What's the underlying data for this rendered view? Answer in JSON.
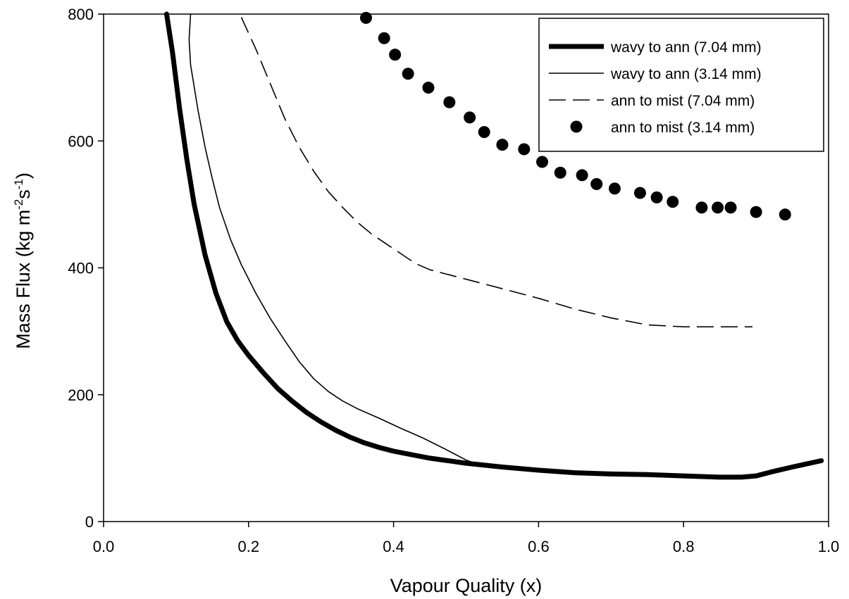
{
  "chart_data": {
    "type": "line",
    "xlabel": "Vapour Quality (x)",
    "ylabel": "Mass Flux (kg m-2s-1)",
    "ylabel_parts": [
      "Mass Flux (kg m",
      "-2",
      "s",
      "-1",
      ")"
    ],
    "xlim": [
      0.0,
      1.0
    ],
    "ylim": [
      0,
      800
    ],
    "x_ticks": [
      "0.0",
      "0.2",
      "0.4",
      "0.6",
      "0.8",
      "1.0"
    ],
    "y_ticks": [
      "0",
      "200",
      "400",
      "600",
      "800"
    ],
    "grid": false,
    "legend_position": "top-right",
    "series": [
      {
        "name": "wavy to ann (7.04 mm)",
        "style": "thick-solid",
        "color": "#000000",
        "points": [
          [
            0.087,
            800
          ],
          [
            0.095,
            740
          ],
          [
            0.105,
            650
          ],
          [
            0.115,
            570
          ],
          [
            0.125,
            500
          ],
          [
            0.14,
            420
          ],
          [
            0.155,
            360
          ],
          [
            0.17,
            315
          ],
          [
            0.185,
            285
          ],
          [
            0.2,
            262
          ],
          [
            0.22,
            235
          ],
          [
            0.24,
            210
          ],
          [
            0.26,
            190
          ],
          [
            0.28,
            172
          ],
          [
            0.3,
            157
          ],
          [
            0.32,
            144
          ],
          [
            0.34,
            133
          ],
          [
            0.36,
            124
          ],
          [
            0.38,
            117
          ],
          [
            0.4,
            111
          ],
          [
            0.45,
            100
          ],
          [
            0.5,
            92
          ],
          [
            0.55,
            86
          ],
          [
            0.6,
            81
          ],
          [
            0.65,
            77
          ],
          [
            0.7,
            75
          ],
          [
            0.75,
            74
          ],
          [
            0.8,
            72
          ],
          [
            0.85,
            70
          ],
          [
            0.88,
            70
          ],
          [
            0.9,
            72
          ],
          [
            0.92,
            78
          ],
          [
            0.95,
            86
          ],
          [
            0.99,
            96
          ]
        ]
      },
      {
        "name": "wavy to ann (3.14 mm)",
        "style": "thin-solid",
        "color": "#000000",
        "points": [
          [
            0.12,
            800
          ],
          [
            0.118,
            760
          ],
          [
            0.12,
            720
          ],
          [
            0.13,
            650
          ],
          [
            0.14,
            590
          ],
          [
            0.15,
            540
          ],
          [
            0.16,
            495
          ],
          [
            0.175,
            445
          ],
          [
            0.19,
            405
          ],
          [
            0.21,
            360
          ],
          [
            0.23,
            320
          ],
          [
            0.25,
            285
          ],
          [
            0.27,
            252
          ],
          [
            0.29,
            225
          ],
          [
            0.31,
            205
          ],
          [
            0.33,
            190
          ],
          [
            0.35,
            178
          ],
          [
            0.38,
            163
          ],
          [
            0.41,
            147
          ],
          [
            0.44,
            132
          ],
          [
            0.47,
            115
          ],
          [
            0.5,
            97
          ],
          [
            0.51,
            93
          ]
        ]
      },
      {
        "name": "ann to mist (7.04 mm)",
        "style": "dashed",
        "color": "#000000",
        "points": [
          [
            0.19,
            795
          ],
          [
            0.21,
            745
          ],
          [
            0.23,
            690
          ],
          [
            0.25,
            635
          ],
          [
            0.27,
            590
          ],
          [
            0.29,
            552
          ],
          [
            0.31,
            520
          ],
          [
            0.33,
            495
          ],
          [
            0.35,
            472
          ],
          [
            0.37,
            453
          ],
          [
            0.4,
            430
          ],
          [
            0.43,
            407
          ],
          [
            0.45,
            397
          ],
          [
            0.5,
            382
          ],
          [
            0.55,
            367
          ],
          [
            0.6,
            352
          ],
          [
            0.65,
            335
          ],
          [
            0.7,
            321
          ],
          [
            0.75,
            310
          ],
          [
            0.8,
            307
          ],
          [
            0.85,
            307
          ],
          [
            0.895,
            307
          ]
        ]
      },
      {
        "name": "ann to mist (3.14 mm)",
        "style": "dots",
        "color": "#000000",
        "points": [
          [
            0.362,
            794
          ],
          [
            0.387,
            762
          ],
          [
            0.402,
            736
          ],
          [
            0.42,
            706
          ],
          [
            0.448,
            684
          ],
          [
            0.477,
            661
          ],
          [
            0.505,
            637
          ],
          [
            0.525,
            614
          ],
          [
            0.55,
            594
          ],
          [
            0.58,
            587
          ],
          [
            0.605,
            567
          ],
          [
            0.63,
            550
          ],
          [
            0.66,
            546
          ],
          [
            0.68,
            532
          ],
          [
            0.705,
            525
          ],
          [
            0.74,
            518
          ],
          [
            0.763,
            511
          ],
          [
            0.785,
            504
          ],
          [
            0.825,
            495
          ],
          [
            0.847,
            495
          ],
          [
            0.865,
            495
          ],
          [
            0.9,
            488
          ],
          [
            0.94,
            484
          ]
        ]
      }
    ]
  }
}
